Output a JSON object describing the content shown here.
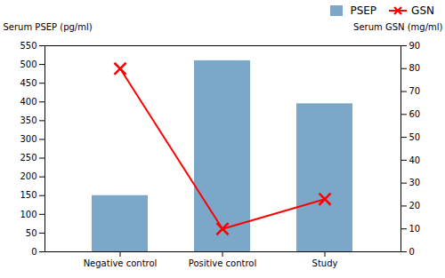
{
  "chart_data": {
    "type": "bar",
    "categories": [
      "Negative control",
      "Positive control",
      "Study"
    ],
    "series": [
      {
        "name": "PSEP",
        "type": "bar",
        "color": "#7BA7C9",
        "values": [
          150,
          510,
          395
        ]
      },
      {
        "name": "GSN",
        "type": "line",
        "color": "red",
        "marker": "x",
        "axis": "y2",
        "values": [
          80,
          10,
          23
        ]
      }
    ],
    "ylabel": "Serum PSEP (pg/ml)",
    "y2label": "Serum GSN (mg/ml)",
    "ylim": [
      0,
      550
    ],
    "yticks": [
      0,
      50,
      100,
      150,
      200,
      250,
      300,
      350,
      400,
      450,
      500,
      550
    ],
    "y2lim": [
      0,
      90
    ],
    "y2ticks": [
      0,
      10,
      20,
      30,
      40,
      50,
      60,
      70,
      80,
      90
    ],
    "legend": "upper right"
  }
}
